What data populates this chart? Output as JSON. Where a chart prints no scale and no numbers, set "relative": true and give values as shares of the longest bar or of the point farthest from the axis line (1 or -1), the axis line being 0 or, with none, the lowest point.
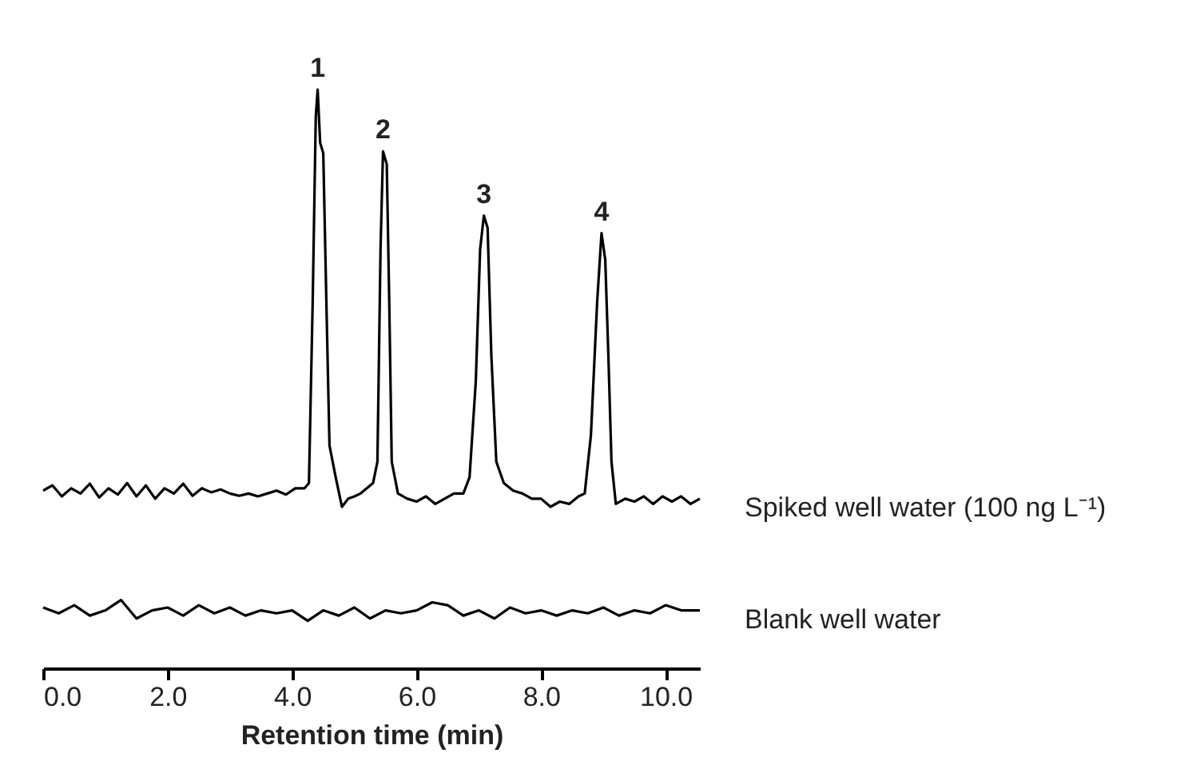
{
  "chart_data": {
    "type": "line",
    "relative": true,
    "xlabel": "Retention time (min)",
    "xlim": [
      0,
      10.55
    ],
    "xticks": [
      {
        "value": 0,
        "label": "0.0"
      },
      {
        "value": 2,
        "label": "2.0"
      },
      {
        "value": 4,
        "label": "4.0"
      },
      {
        "value": 6,
        "label": "6.0"
      },
      {
        "value": 8,
        "label": "8.0"
      },
      {
        "value": 10,
        "label": "10.0"
      }
    ],
    "annotations": [
      {
        "text": "1",
        "x": 4.41,
        "y": 1.0
      },
      {
        "text": "2",
        "x": 5.46,
        "y": 0.893
      },
      {
        "text": "3",
        "x": 7.08,
        "y": 0.782
      },
      {
        "text": "4",
        "x": 8.97,
        "y": 0.752
      }
    ],
    "series": [
      {
        "name": "Spiked well water (100 ng L⁻¹)",
        "color": "#000000",
        "x": [
          0,
          0.15,
          0.3,
          0.45,
          0.6,
          0.75,
          0.9,
          1.05,
          1.2,
          1.35,
          1.5,
          1.65,
          1.8,
          1.95,
          2.1,
          2.25,
          2.4,
          2.55,
          2.7,
          2.85,
          3.0,
          3.15,
          3.3,
          3.45,
          3.6,
          3.75,
          3.9,
          4.05,
          4.2,
          4.27,
          4.33,
          4.38,
          4.41,
          4.45,
          4.5,
          4.55,
          4.6,
          4.7,
          4.8,
          4.9,
          5.0,
          5.1,
          5.2,
          5.3,
          5.37,
          5.42,
          5.46,
          5.52,
          5.56,
          5.6,
          5.7,
          5.85,
          6.0,
          6.15,
          6.3,
          6.45,
          6.6,
          6.75,
          6.85,
          6.95,
          7.02,
          7.08,
          7.14,
          7.2,
          7.28,
          7.4,
          7.55,
          7.7,
          7.85,
          8.0,
          8.15,
          8.3,
          8.45,
          8.6,
          8.7,
          8.8,
          8.9,
          8.97,
          9.03,
          9.08,
          9.13,
          9.2,
          9.35,
          9.5,
          9.65,
          9.8,
          9.95,
          10.1,
          10.25,
          10.4,
          10.55
        ],
        "values": [
          0.307,
          0.316,
          0.297,
          0.311,
          0.302,
          0.319,
          0.295,
          0.311,
          0.3,
          0.32,
          0.297,
          0.316,
          0.293,
          0.311,
          0.302,
          0.319,
          0.298,
          0.311,
          0.304,
          0.309,
          0.302,
          0.298,
          0.302,
          0.297,
          0.302,
          0.307,
          0.3,
          0.311,
          0.311,
          0.32,
          0.633,
          0.954,
          1.0,
          0.908,
          0.89,
          0.633,
          0.385,
          0.33,
          0.279,
          0.293,
          0.297,
          0.302,
          0.311,
          0.32,
          0.357,
          0.724,
          0.893,
          0.871,
          0.633,
          0.357,
          0.302,
          0.293,
          0.288,
          0.297,
          0.284,
          0.293,
          0.302,
          0.302,
          0.33,
          0.495,
          0.724,
          0.782,
          0.761,
          0.541,
          0.357,
          0.32,
          0.307,
          0.302,
          0.293,
          0.293,
          0.279,
          0.288,
          0.284,
          0.297,
          0.302,
          0.403,
          0.633,
          0.752,
          0.706,
          0.541,
          0.357,
          0.284,
          0.293,
          0.288,
          0.297,
          0.284,
          0.297,
          0.288,
          0.297,
          0.284,
          0.293
        ]
      },
      {
        "name": "Blank well water",
        "color": "#000000",
        "x": [
          0,
          0.25,
          0.5,
          0.75,
          1.0,
          1.25,
          1.5,
          1.75,
          2.0,
          2.25,
          2.5,
          2.75,
          3.0,
          3.25,
          3.5,
          3.75,
          4.0,
          4.25,
          4.5,
          4.75,
          5.0,
          5.25,
          5.5,
          5.75,
          6.0,
          6.25,
          6.5,
          6.75,
          7.0,
          7.25,
          7.5,
          7.75,
          8.0,
          8.25,
          8.5,
          8.75,
          9.0,
          9.25,
          9.5,
          9.75,
          10.0,
          10.25,
          10.55
        ],
        "values": [
          0.105,
          0.095,
          0.109,
          0.091,
          0.1,
          0.118,
          0.086,
          0.1,
          0.105,
          0.091,
          0.109,
          0.095,
          0.105,
          0.091,
          0.1,
          0.095,
          0.1,
          0.082,
          0.1,
          0.091,
          0.105,
          0.086,
          0.1,
          0.095,
          0.1,
          0.114,
          0.109,
          0.091,
          0.1,
          0.086,
          0.105,
          0.095,
          0.1,
          0.091,
          0.1,
          0.095,
          0.105,
          0.091,
          0.1,
          0.095,
          0.109,
          0.1,
          0.1
        ]
      }
    ]
  }
}
